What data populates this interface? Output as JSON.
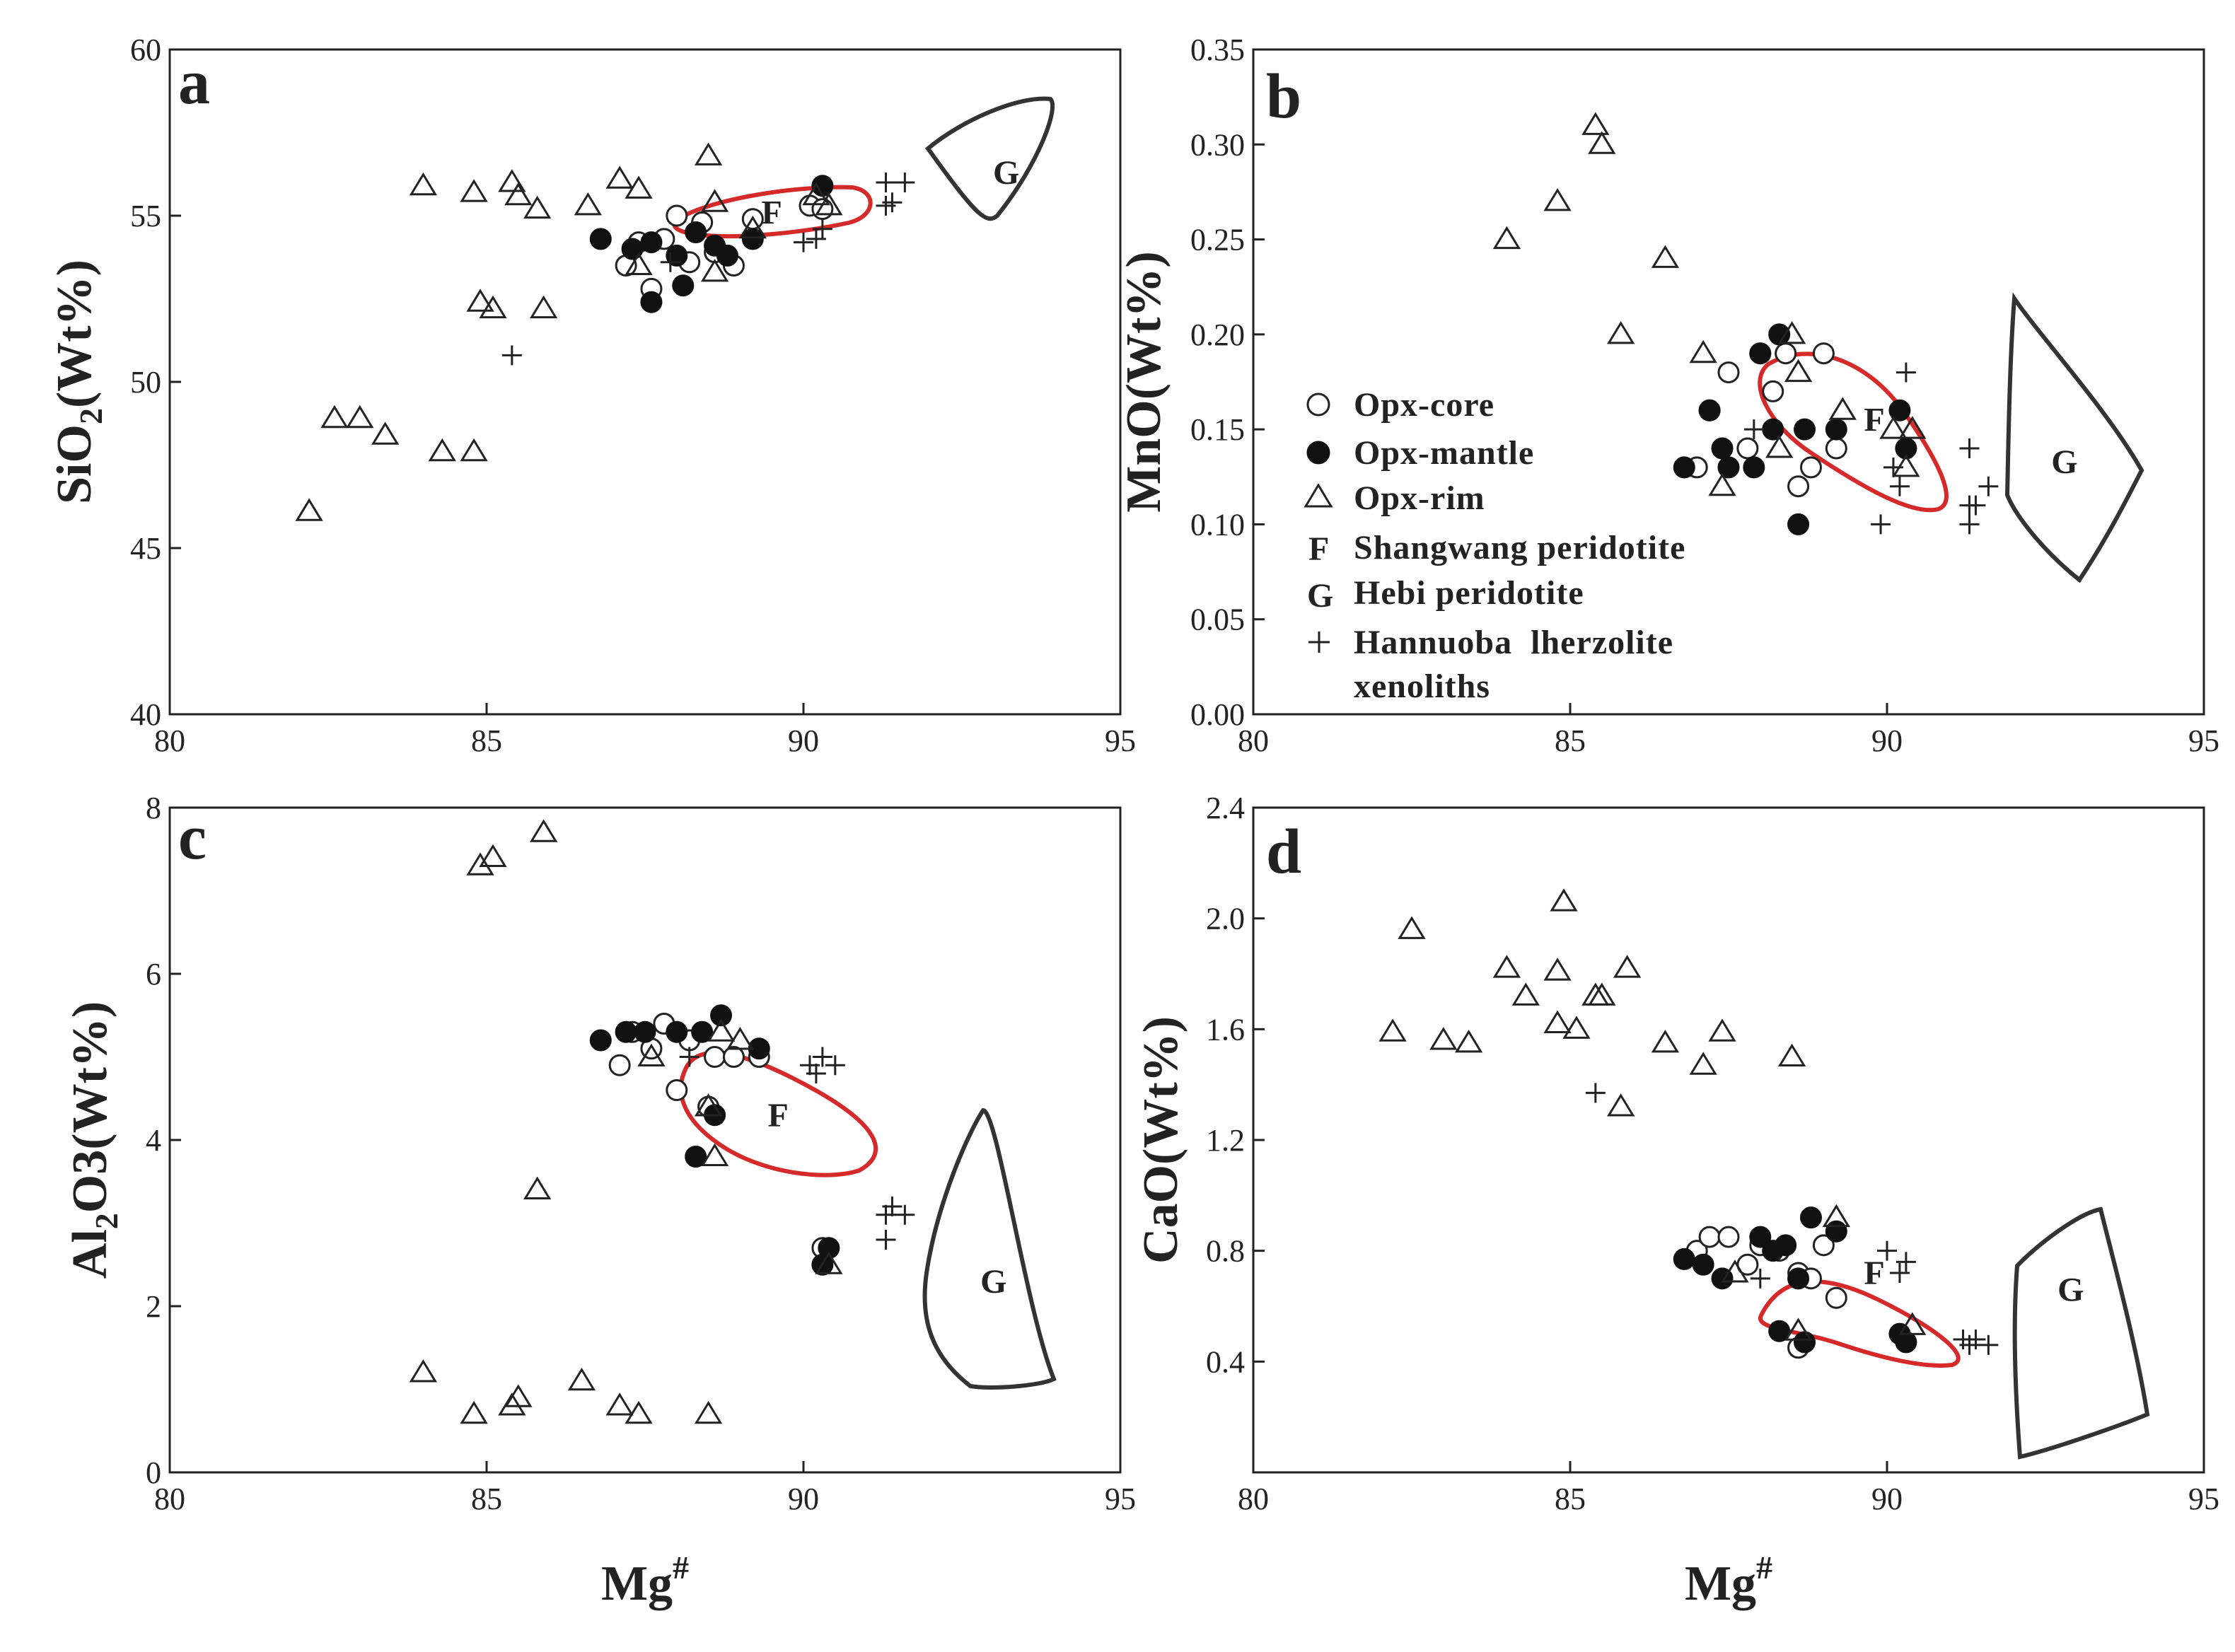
{
  "figure": {
    "x_label": "Mg",
    "x_label_sup": "#",
    "colors": {
      "F_region": "#d62a2a",
      "G_region": "#333333",
      "axes": "#222222"
    }
  },
  "legend": {
    "items": [
      {
        "marker": "open-circle",
        "label": "Opx-core"
      },
      {
        "marker": "filled-circle",
        "label": "Opx-mantle"
      },
      {
        "marker": "open-triangle",
        "label": "Opx-rim"
      },
      {
        "marker": "F",
        "label": "Shangwang peridotite"
      },
      {
        "marker": "G",
        "label": "Hebi peridotite"
      },
      {
        "marker": "plus",
        "label": "Hannuoba  lherzolite"
      }
    ],
    "continuation": "xenoliths"
  },
  "chart_data": [
    {
      "panel": "a",
      "type": "scatter",
      "ylabel": "SiO",
      "ylabel_sub": "2",
      "ylabel_tail": "(Wt%)",
      "xlim": [
        80,
        95
      ],
      "ylim": [
        40,
        60
      ],
      "xticks": [
        "80",
        "85",
        "90",
        "95"
      ],
      "yticks": [
        "40",
        "45",
        "50",
        "55",
        "60"
      ],
      "series": [
        {
          "name": "Opx-core",
          "points": [
            [
              87.2,
              53.5
            ],
            [
              87.4,
              54.2
            ],
            [
              87.8,
              54.3
            ],
            [
              88.0,
              55.0
            ],
            [
              88.2,
              53.6
            ],
            [
              88.4,
              54.8
            ],
            [
              88.6,
              53.9
            ],
            [
              88.9,
              53.5
            ],
            [
              89.2,
              54.9
            ],
            [
              87.6,
              52.8
            ],
            [
              90.1,
              55.3
            ],
            [
              90.3,
              55.2
            ]
          ]
        },
        {
          "name": "Opx-mantle",
          "points": [
            [
              86.8,
              54.3
            ],
            [
              87.3,
              54.0
            ],
            [
              87.6,
              54.2
            ],
            [
              88.0,
              53.8
            ],
            [
              88.3,
              54.5
            ],
            [
              88.6,
              54.1
            ],
            [
              88.8,
              53.8
            ],
            [
              89.2,
              54.3
            ],
            [
              87.6,
              52.4
            ],
            [
              88.1,
              52.9
            ],
            [
              90.3,
              55.9
            ]
          ]
        },
        {
          "name": "Opx-rim",
          "points": [
            [
              82.2,
              46.1
            ],
            [
              82.6,
              48.9
            ],
            [
              83.0,
              48.9
            ],
            [
              83.4,
              48.4
            ],
            [
              84.0,
              55.9
            ],
            [
              84.3,
              47.9
            ],
            [
              84.8,
              55.7
            ],
            [
              84.8,
              47.9
            ],
            [
              84.9,
              52.4
            ],
            [
              85.1,
              52.2
            ],
            [
              85.4,
              56.0
            ],
            [
              85.5,
              55.6
            ],
            [
              85.8,
              55.2
            ],
            [
              85.9,
              52.2
            ],
            [
              86.6,
              55.3
            ],
            [
              87.1,
              56.1
            ],
            [
              87.4,
              55.8
            ],
            [
              87.4,
              53.5
            ],
            [
              88.5,
              56.8
            ],
            [
              88.6,
              55.4
            ],
            [
              88.6,
              53.3
            ],
            [
              89.2,
              54.6
            ],
            [
              90.2,
              55.6
            ],
            [
              90.4,
              55.3
            ]
          ]
        },
        {
          "name": "Hannuoba",
          "points": [
            [
              85.4,
              50.8
            ],
            [
              87.9,
              53.6
            ],
            [
              90.0,
              54.2
            ],
            [
              90.2,
              54.3
            ],
            [
              90.3,
              54.6
            ],
            [
              91.3,
              55.3
            ],
            [
              91.4,
              55.4
            ],
            [
              91.3,
              56.0
            ],
            [
              91.6,
              56.0
            ]
          ]
        }
      ],
      "regions": [
        {
          "name": "F",
          "label_at": [
            89.5,
            55.1
          ]
        },
        {
          "name": "G",
          "label_at": [
            93.2,
            56.3
          ]
        }
      ]
    },
    {
      "panel": "b",
      "type": "scatter",
      "ylabel": "MnO",
      "ylabel_sub": "",
      "ylabel_tail": "(Wt%)",
      "xlim": [
        80,
        95
      ],
      "ylim": [
        0,
        0.35
      ],
      "xticks": [
        "80",
        "85",
        "90",
        "95"
      ],
      "yticks": [
        "0.00",
        "0.05",
        "0.10",
        "0.15",
        "0.20",
        "0.25",
        "0.30",
        "0.35"
      ],
      "series": [
        {
          "name": "Opx-core",
          "points": [
            [
              87.0,
              0.13
            ],
            [
              87.2,
              0.16
            ],
            [
              87.5,
              0.18
            ],
            [
              87.8,
              0.14
            ],
            [
              88.0,
              0.19
            ],
            [
              88.4,
              0.19
            ],
            [
              88.6,
              0.12
            ],
            [
              88.8,
              0.13
            ],
            [
              89.0,
              0.19
            ],
            [
              89.2,
              0.14
            ],
            [
              88.2,
              0.17
            ]
          ]
        },
        {
          "name": "Opx-mantle",
          "points": [
            [
              86.8,
              0.13
            ],
            [
              87.2,
              0.16
            ],
            [
              87.4,
              0.14
            ],
            [
              87.5,
              0.13
            ],
            [
              87.9,
              0.13
            ],
            [
              88.0,
              0.19
            ],
            [
              88.2,
              0.15
            ],
            [
              88.3,
              0.2
            ],
            [
              88.6,
              0.1
            ],
            [
              88.7,
              0.15
            ],
            [
              89.2,
              0.15
            ],
            [
              90.2,
              0.16
            ],
            [
              90.3,
              0.14
            ]
          ]
        },
        {
          "name": "Opx-rim",
          "points": [
            [
              84.0,
              0.25
            ],
            [
              84.8,
              0.27
            ],
            [
              85.4,
              0.31
            ],
            [
              85.5,
              0.3
            ],
            [
              85.8,
              0.2
            ],
            [
              86.5,
              0.24
            ],
            [
              87.1,
              0.19
            ],
            [
              87.4,
              0.12
            ],
            [
              88.3,
              0.14
            ],
            [
              88.5,
              0.2
            ],
            [
              88.6,
              0.18
            ],
            [
              89.3,
              0.16
            ],
            [
              90.1,
              0.15
            ],
            [
              90.3,
              0.13
            ],
            [
              90.4,
              0.15
            ]
          ]
        },
        {
          "name": "Hannuoba",
          "points": [
            [
              87.9,
              0.15
            ],
            [
              89.9,
              0.1
            ],
            [
              90.2,
              0.12
            ],
            [
              90.3,
              0.18
            ],
            [
              90.1,
              0.13
            ],
            [
              91.3,
              0.14
            ],
            [
              91.3,
              0.11
            ],
            [
              91.4,
              0.11
            ],
            [
              91.3,
              0.1
            ],
            [
              91.6,
              0.12
            ]
          ]
        }
      ],
      "regions": [
        {
          "name": "F",
          "label_at": [
            89.8,
            0.155
          ]
        },
        {
          "name": "G",
          "label_at": [
            92.8,
            0.133
          ]
        }
      ]
    },
    {
      "panel": "c",
      "type": "scatter",
      "ylabel": "Al",
      "ylabel_sub": "2",
      "ylabel_tail": "O3(Wt%)",
      "xlim": [
        80,
        95
      ],
      "ylim": [
        0,
        8
      ],
      "xticks": [
        "80",
        "85",
        "90",
        "95"
      ],
      "yticks": [
        "0",
        "2",
        "4",
        "6",
        "8"
      ],
      "series": [
        {
          "name": "Opx-core",
          "points": [
            [
              87.1,
              4.9
            ],
            [
              87.3,
              5.3
            ],
            [
              87.6,
              5.1
            ],
            [
              87.8,
              5.4
            ],
            [
              88.0,
              4.6
            ],
            [
              88.2,
              5.2
            ],
            [
              88.6,
              5.0
            ],
            [
              88.9,
              5.0
            ],
            [
              89.3,
              5.0
            ],
            [
              88.5,
              4.4
            ],
            [
              90.3,
              2.7
            ]
          ]
        },
        {
          "name": "Opx-mantle",
          "points": [
            [
              86.8,
              5.2
            ],
            [
              87.2,
              5.3
            ],
            [
              87.5,
              5.3
            ],
            [
              88.0,
              5.3
            ],
            [
              88.3,
              3.8
            ],
            [
              88.4,
              5.3
            ],
            [
              88.7,
              5.5
            ],
            [
              88.6,
              4.3
            ],
            [
              89.3,
              5.1
            ],
            [
              90.4,
              2.7
            ],
            [
              90.3,
              2.5
            ]
          ]
        },
        {
          "name": "Opx-rim",
          "points": [
            [
              84.0,
              1.2
            ],
            [
              84.8,
              0.7
            ],
            [
              84.9,
              7.3
            ],
            [
              85.1,
              7.4
            ],
            [
              85.4,
              0.8
            ],
            [
              85.5,
              0.9
            ],
            [
              85.8,
              3.4
            ],
            [
              85.9,
              7.7
            ],
            [
              86.5,
              1.1
            ],
            [
              87.1,
              0.8
            ],
            [
              87.4,
              0.7
            ],
            [
              87.6,
              5.0
            ],
            [
              88.5,
              0.7
            ],
            [
              88.5,
              4.4
            ],
            [
              88.6,
              3.8
            ],
            [
              88.7,
              5.3
            ],
            [
              89.0,
              5.2
            ],
            [
              90.4,
              2.5
            ]
          ]
        },
        {
          "name": "Hannuoba",
          "points": [
            [
              88.2,
              5.0
            ],
            [
              90.1,
              4.9
            ],
            [
              90.2,
              4.8
            ],
            [
              90.3,
              5.0
            ],
            [
              90.5,
              4.9
            ],
            [
              91.3,
              3.1
            ],
            [
              91.4,
              3.2
            ],
            [
              91.6,
              3.1
            ],
            [
              91.3,
              2.8
            ]
          ]
        }
      ],
      "regions": [
        {
          "name": "F",
          "label_at": [
            89.6,
            4.3
          ]
        },
        {
          "name": "G",
          "label_at": [
            93.0,
            2.3
          ]
        }
      ]
    },
    {
      "panel": "d",
      "type": "scatter",
      "ylabel": "CaO",
      "ylabel_sub": "",
      "ylabel_tail": "(Wt%)",
      "xlim": [
        80,
        95
      ],
      "ylim": [
        0.0,
        2.4
      ],
      "xticks": [
        "80",
        "85",
        "90",
        "95"
      ],
      "yticks": [
        "0.4",
        "0.8",
        "1.2",
        "1.6",
        "2.0",
        "2.4"
      ],
      "series": [
        {
          "name": "Opx-core",
          "points": [
            [
              87.0,
              0.8
            ],
            [
              87.2,
              0.85
            ],
            [
              87.5,
              0.85
            ],
            [
              87.8,
              0.75
            ],
            [
              88.0,
              0.82
            ],
            [
              88.3,
              0.8
            ],
            [
              88.6,
              0.72
            ],
            [
              88.8,
              0.7
            ],
            [
              89.0,
              0.82
            ],
            [
              89.2,
              0.63
            ],
            [
              88.6,
              0.45
            ]
          ]
        },
        {
          "name": "Opx-mantle",
          "points": [
            [
              86.8,
              0.77
            ],
            [
              87.1,
              0.75
            ],
            [
              87.4,
              0.7
            ],
            [
              88.0,
              0.85
            ],
            [
              88.2,
              0.8
            ],
            [
              88.4,
              0.82
            ],
            [
              88.3,
              0.51
            ],
            [
              88.6,
              0.7
            ],
            [
              88.8,
              0.92
            ],
            [
              89.2,
              0.87
            ],
            [
              90.2,
              0.5
            ],
            [
              90.3,
              0.47
            ],
            [
              88.7,
              0.47
            ]
          ]
        },
        {
          "name": "Opx-rim",
          "points": [
            [
              82.2,
              1.59
            ],
            [
              82.5,
              1.96
            ],
            [
              83.0,
              1.56
            ],
            [
              83.4,
              1.55
            ],
            [
              84.0,
              1.82
            ],
            [
              84.3,
              1.72
            ],
            [
              84.8,
              1.81
            ],
            [
              84.8,
              1.62
            ],
            [
              84.9,
              2.06
            ],
            [
              85.1,
              1.6
            ],
            [
              85.4,
              1.72
            ],
            [
              85.5,
              1.72
            ],
            [
              85.8,
              1.32
            ],
            [
              85.9,
              1.82
            ],
            [
              86.5,
              1.55
            ],
            [
              87.1,
              1.47
            ],
            [
              87.4,
              1.59
            ],
            [
              88.5,
              1.5
            ],
            [
              87.6,
              0.72
            ],
            [
              88.6,
              0.51
            ],
            [
              89.2,
              0.92
            ],
            [
              90.4,
              0.53
            ]
          ]
        },
        {
          "name": "Hannuoba",
          "points": [
            [
              85.4,
              1.37
            ],
            [
              88.0,
              0.7
            ],
            [
              90.0,
              0.8
            ],
            [
              90.2,
              0.72
            ],
            [
              90.3,
              0.76
            ],
            [
              91.2,
              0.48
            ],
            [
              91.3,
              0.46
            ],
            [
              91.4,
              0.48
            ],
            [
              91.6,
              0.46
            ]
          ]
        }
      ],
      "regions": [
        {
          "name": "F",
          "label_at": [
            89.8,
            0.72
          ]
        },
        {
          "name": "G",
          "label_at": [
            92.9,
            0.66
          ]
        }
      ]
    }
  ]
}
